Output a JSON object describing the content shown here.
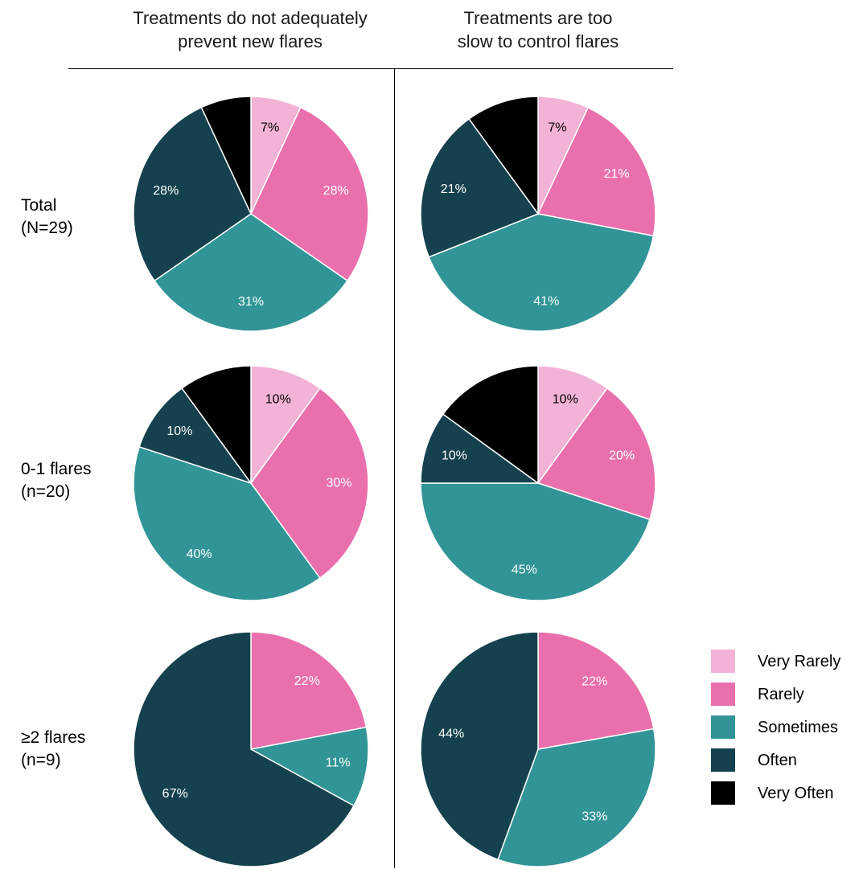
{
  "columns": [
    {
      "line1": "Treatments do not adequately",
      "line2": "prevent new flares"
    },
    {
      "line1": "Treatments are too",
      "line2": "slow to control flares"
    }
  ],
  "rows": [
    {
      "line1": "Total",
      "line2": "(N=29)"
    },
    {
      "line1": "0-1 flares",
      "line2": "(n=20)"
    },
    {
      "line1": "≥2 flares",
      "line2": "(n=9)"
    }
  ],
  "colors": {
    "Very Rarely": "#f3b3d6",
    "Rarely": "#e970ad",
    "Sometimes": "#319497",
    "Often": "#14414d",
    "Very Often": "#000000"
  },
  "chart_data": {
    "type": "pie",
    "legend": [
      "Very Rarely",
      "Rarely",
      "Sometimes",
      "Often",
      "Very Often"
    ],
    "legend_position": "right",
    "pies": [
      {
        "row": 0,
        "col": 0,
        "values": [
          7,
          28,
          31,
          28,
          7
        ],
        "labels": [
          "7%",
          "28%",
          "31%",
          "28%",
          "7%"
        ]
      },
      {
        "row": 0,
        "col": 1,
        "values": [
          7,
          21,
          41,
          21,
          10
        ],
        "labels": [
          "7%",
          "21%",
          "41%",
          "21%",
          "10%"
        ]
      },
      {
        "row": 1,
        "col": 0,
        "values": [
          10,
          30,
          40,
          10,
          10
        ],
        "labels": [
          "10%",
          "30%",
          "40%",
          "10%",
          "10%"
        ]
      },
      {
        "row": 1,
        "col": 1,
        "values": [
          10,
          20,
          45,
          10,
          15
        ],
        "labels": [
          "10%",
          "20%",
          "45%",
          "10%",
          "15%"
        ]
      },
      {
        "row": 2,
        "col": 0,
        "values": [
          0,
          22,
          11,
          67,
          0
        ],
        "labels": [
          "",
          "22%",
          "11%",
          "67%",
          ""
        ]
      },
      {
        "row": 2,
        "col": 1,
        "values": [
          0,
          22,
          33,
          44,
          0
        ],
        "labels": [
          "",
          "22%",
          "33%",
          "44%",
          ""
        ]
      }
    ]
  }
}
